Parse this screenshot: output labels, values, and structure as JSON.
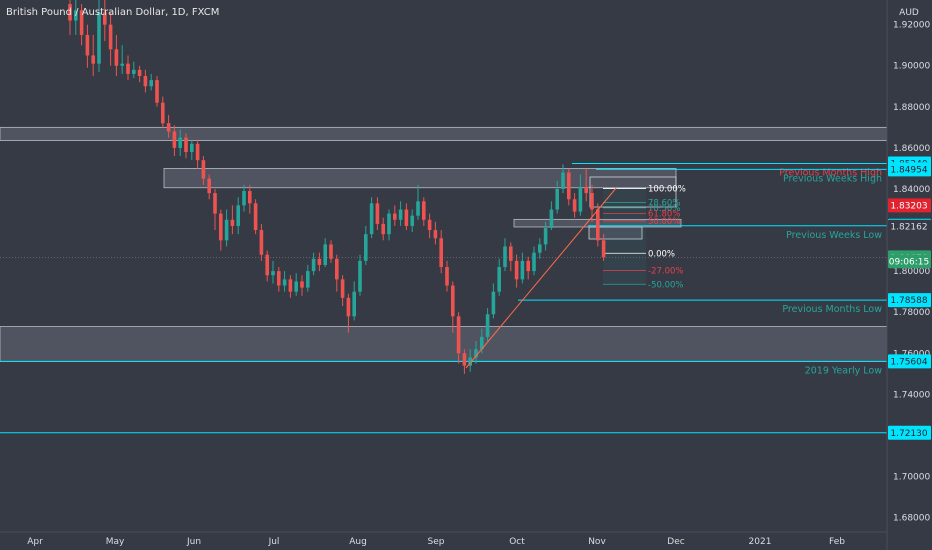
{
  "chart_data": {
    "type": "candlestick",
    "title": "British Pound / Australian Dollar, 1D, FXCM",
    "currency_label": "AUD",
    "ylim": [
      1.673,
      1.932
    ],
    "y_ticks": [
      "1.92000",
      "1.90000",
      "1.88000",
      "1.86000",
      "1.84000",
      "1.82000",
      "1.80000",
      "1.78000",
      "1.76000",
      "1.74000",
      "1.72000",
      "1.70000",
      "1.68000"
    ],
    "x_ticks": [
      "Apr",
      "May",
      "Jun",
      "Jul",
      "Aug",
      "Sep",
      "Oct",
      "Nov",
      "Dec",
      "2021",
      "Feb"
    ],
    "candles": [
      [
        1.93,
        1.922,
        1.936,
        1.915
      ],
      [
        1.922,
        1.927,
        1.933,
        1.915
      ],
      [
        1.927,
        1.915,
        1.93,
        1.91
      ],
      [
        1.915,
        1.905,
        1.92,
        1.899
      ],
      [
        1.905,
        1.901,
        1.915,
        1.895
      ],
      [
        1.901,
        1.926,
        1.934,
        1.897
      ],
      [
        1.926,
        1.92,
        1.936,
        1.912
      ],
      [
        1.92,
        1.908,
        1.926,
        1.9
      ],
      [
        1.908,
        1.9,
        1.915,
        1.895
      ],
      [
        1.9,
        1.901,
        1.91,
        1.896
      ],
      [
        1.901,
        1.896,
        1.905,
        1.893
      ],
      [
        1.896,
        1.898,
        1.902,
        1.894
      ],
      [
        1.898,
        1.895,
        1.9,
        1.892
      ],
      [
        1.895,
        1.89,
        1.898,
        1.887
      ],
      [
        1.89,
        1.893,
        1.896,
        1.888
      ],
      [
        1.893,
        1.882,
        1.895,
        1.88
      ],
      [
        1.882,
        1.872,
        1.885,
        1.87
      ],
      [
        1.872,
        1.868,
        1.876,
        1.865
      ],
      [
        1.868,
        1.86,
        1.871,
        1.856
      ],
      [
        1.86,
        1.865,
        1.869,
        1.856
      ],
      [
        1.865,
        1.858,
        1.867,
        1.855
      ],
      [
        1.858,
        1.862,
        1.864,
        1.854
      ],
      [
        1.862,
        1.854,
        1.864,
        1.85
      ],
      [
        1.854,
        1.845,
        1.856,
        1.842
      ],
      [
        1.845,
        1.838,
        1.847,
        1.835
      ],
      [
        1.838,
        1.828,
        1.84,
        1.82
      ],
      [
        1.828,
        1.815,
        1.83,
        1.81
      ],
      [
        1.815,
        1.825,
        1.83,
        1.812
      ],
      [
        1.825,
        1.822,
        1.832,
        1.818
      ],
      [
        1.822,
        1.832,
        1.836,
        1.818
      ],
      [
        1.832,
        1.839,
        1.842,
        1.829
      ],
      [
        1.839,
        1.833,
        1.842,
        1.828
      ],
      [
        1.833,
        1.82,
        1.835,
        1.818
      ],
      [
        1.82,
        1.808,
        1.823,
        1.805
      ],
      [
        1.808,
        1.798,
        1.81,
        1.795
      ],
      [
        1.798,
        1.8,
        1.805,
        1.794
      ],
      [
        1.8,
        1.793,
        1.802,
        1.79
      ],
      [
        1.793,
        1.796,
        1.8,
        1.79
      ],
      [
        1.796,
        1.79,
        1.798,
        1.787
      ],
      [
        1.79,
        1.795,
        1.799,
        1.788
      ],
      [
        1.795,
        1.792,
        1.798,
        1.788
      ],
      [
        1.792,
        1.8,
        1.803,
        1.79
      ],
      [
        1.8,
        1.806,
        1.809,
        1.798
      ],
      [
        1.806,
        1.803,
        1.809,
        1.8
      ],
      [
        1.803,
        1.813,
        1.816,
        1.802
      ],
      [
        1.813,
        1.806,
        1.815,
        1.804
      ],
      [
        1.806,
        1.796,
        1.808,
        1.79
      ],
      [
        1.796,
        1.787,
        1.798,
        1.783
      ],
      [
        1.787,
        1.778,
        1.789,
        1.77
      ],
      [
        1.778,
        1.79,
        1.795,
        1.776
      ],
      [
        1.79,
        1.805,
        1.808,
        1.788
      ],
      [
        1.805,
        1.818,
        1.822,
        1.803
      ],
      [
        1.818,
        1.833,
        1.836,
        1.816
      ],
      [
        1.833,
        1.823,
        1.836,
        1.82
      ],
      [
        1.823,
        1.818,
        1.826,
        1.815
      ],
      [
        1.818,
        1.828,
        1.83,
        1.815
      ],
      [
        1.828,
        1.825,
        1.832,
        1.822
      ],
      [
        1.825,
        1.83,
        1.834,
        1.822
      ],
      [
        1.83,
        1.822,
        1.833,
        1.82
      ],
      [
        1.822,
        1.827,
        1.83,
        1.819
      ],
      [
        1.827,
        1.834,
        1.842,
        1.825
      ],
      [
        1.834,
        1.825,
        1.836,
        1.822
      ],
      [
        1.825,
        1.82,
        1.828,
        1.816
      ],
      [
        1.82,
        1.816,
        1.824,
        1.813
      ],
      [
        1.816,
        1.802,
        1.82,
        1.799
      ],
      [
        1.802,
        1.793,
        1.805,
        1.79
      ],
      [
        1.793,
        1.778,
        1.795,
        1.77
      ],
      [
        1.778,
        1.76,
        1.78,
        1.755
      ],
      [
        1.76,
        1.754,
        1.762,
        1.75
      ],
      [
        1.754,
        1.758,
        1.762,
        1.751
      ],
      [
        1.758,
        1.762,
        1.766,
        1.755
      ],
      [
        1.762,
        1.768,
        1.772,
        1.76
      ],
      [
        1.768,
        1.779,
        1.782,
        1.766
      ],
      [
        1.779,
        1.79,
        1.794,
        1.777
      ],
      [
        1.79,
        1.802,
        1.806,
        1.788
      ],
      [
        1.802,
        1.812,
        1.816,
        1.8
      ],
      [
        1.812,
        1.805,
        1.814,
        1.8
      ],
      [
        1.805,
        1.796,
        1.808,
        1.792
      ],
      [
        1.796,
        1.805,
        1.809,
        1.794
      ],
      [
        1.805,
        1.8,
        1.807,
        1.796
      ],
      [
        1.8,
        1.809,
        1.812,
        1.798
      ],
      [
        1.809,
        1.813,
        1.816,
        1.806
      ],
      [
        1.813,
        1.821,
        1.824,
        1.81
      ],
      [
        1.821,
        1.83,
        1.834,
        1.82
      ],
      [
        1.83,
        1.84,
        1.844,
        1.828
      ],
      [
        1.84,
        1.848,
        1.852,
        1.838
      ],
      [
        1.848,
        1.835,
        1.85,
        1.832
      ],
      [
        1.835,
        1.829,
        1.838,
        1.826
      ],
      [
        1.829,
        1.841,
        1.847,
        1.827
      ],
      [
        1.841,
        1.838,
        1.85,
        1.834
      ],
      [
        1.838,
        1.83,
        1.842,
        1.824
      ],
      [
        1.83,
        1.815,
        1.833,
        1.812
      ],
      [
        1.815,
        1.8067,
        1.818,
        1.805
      ]
    ],
    "levels": [
      {
        "value": 1.8524,
        "color": "#00e5ff",
        "label": "Previous Months High",
        "label_color": "#e0434d"
      },
      {
        "value": 1.84954,
        "color": "#00e5ff",
        "label": "Previous Weeks High",
        "label_color": "#26a69a"
      },
      {
        "value": 1.82209,
        "color": "#00e5ff",
        "label": "Previous Weeks Low",
        "label_color": "#26a69a"
      },
      {
        "value": 1.78588,
        "color": "#00e5ff",
        "label": "Previous Months Low",
        "label_color": "#26a69a"
      },
      {
        "value": 1.75604,
        "color": "#00e5ff",
        "label": "2019 Yearly Low",
        "label_color": "#26a69a"
      },
      {
        "value": 1.7213,
        "color": "#00e5ff",
        "label": "",
        "label_color": "#26a69a"
      }
    ],
    "price_tags": [
      {
        "text": "1.85240",
        "value": 1.8524,
        "bg": "#00e5ff",
        "fg": "#1e222d"
      },
      {
        "text": "1.84954",
        "value": 1.84954,
        "bg": "#00e5ff",
        "fg": "#1e222d"
      },
      {
        "text": "1.83203",
        "value": 1.83203,
        "bg": "#e0232e",
        "fg": "#ffffff"
      },
      {
        "text": "1.82209",
        "value": 1.82209,
        "bg": "#00e5ff",
        "fg": "#1e222d"
      },
      {
        "text": "1.82162",
        "value": 1.82162,
        "bg": "#363a45",
        "fg": "#d9dde3"
      },
      {
        "text": "1.80670",
        "value": 1.8067,
        "bg": "#2e9e6a",
        "fg": "#ffffff"
      },
      {
        "text": "09:06:15",
        "value": 1.8048,
        "bg": "#2e9e6a",
        "fg": "#ffffff"
      },
      {
        "text": "1.78588",
        "value": 1.78588,
        "bg": "#00e5ff",
        "fg": "#1e222d"
      },
      {
        "text": "1.75604",
        "value": 1.75604,
        "bg": "#00e5ff",
        "fg": "#1e222d"
      },
      {
        "text": "1.72130",
        "value": 1.7213,
        "bg": "#00e5ff",
        "fg": "#1e222d"
      }
    ],
    "fib_levels": [
      {
        "label": "100.00%",
        "value": 1.8402,
        "color": "#ffffff"
      },
      {
        "label": "78.60%",
        "value": 1.8334,
        "color": "#26a69a"
      },
      {
        "label": "70.50%",
        "value": 1.8308,
        "color": "#26a69a"
      },
      {
        "label": "61.80%",
        "value": 1.828,
        "color": "#e0434d"
      },
      {
        "label": "50.00%",
        "value": 1.8245,
        "color": "#e0434d"
      },
      {
        "label": "0.00%",
        "value": 1.8087,
        "color": "#ffffff"
      },
      {
        "label": "-27.00%",
        "value": 1.8003,
        "color": "#e0434d"
      },
      {
        "label": "-50.00%",
        "value": 1.7936,
        "color": "#26a69a"
      }
    ],
    "zones": [
      {
        "from": 1.8636,
        "to": 1.87
      },
      {
        "from": 1.8406,
        "to": 1.85
      },
      {
        "from": 1.756,
        "to": 1.773
      },
      {
        "from": 1.8215,
        "to": 1.8252
      }
    ],
    "colors": {
      "up": "#26a69a",
      "down": "#ef5350",
      "background": "#363a45",
      "trendline": "#ff6b4a"
    }
  }
}
